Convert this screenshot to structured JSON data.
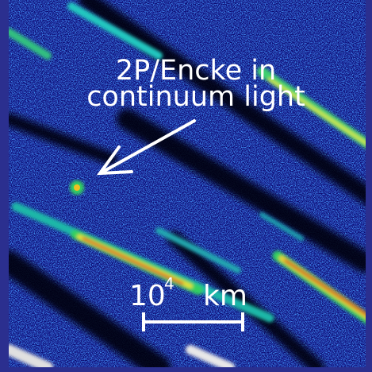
{
  "annotation": {
    "title_lines": [
      "2P/Encke in",
      "continuum light"
    ],
    "scale_bar": {
      "base": "10",
      "exponent": "4",
      "unit": "km"
    }
  }
}
